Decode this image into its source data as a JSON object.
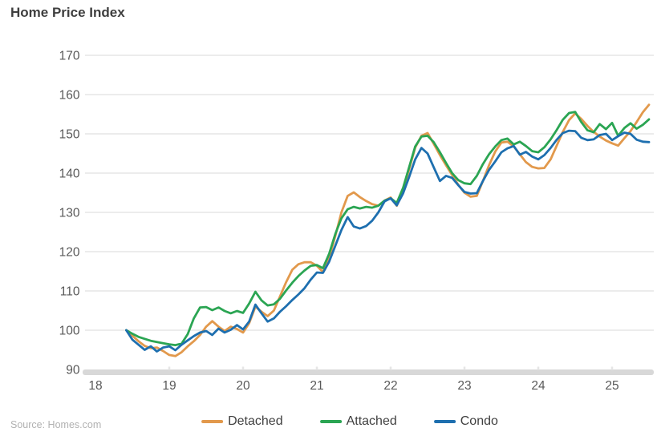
{
  "title": "Home Price Index",
  "source_note": "Source: Homes.com",
  "colors": {
    "detached": "#e2994c",
    "attached": "#2ba553",
    "condo": "#1e6faf",
    "gridline": "#dadada",
    "axis_band": "#d8d8d8",
    "axis_tick": "#e6e6e6",
    "tick_label": "#595959",
    "title_text": "#3e3e3e",
    "legend_text": "#404040",
    "source_text": "#b1b1b1"
  },
  "legend": {
    "items": [
      {
        "label": "Detached",
        "color": "#e2994c"
      },
      {
        "label": "Attached",
        "color": "#2ba553"
      },
      {
        "label": "Condo",
        "color": "#1e6faf"
      }
    ]
  },
  "chart_data": {
    "type": "line",
    "title": "Home Price Index",
    "xlabel": "",
    "ylabel": "",
    "grid": true,
    "legend_position": "bottom",
    "ylim": [
      90,
      170
    ],
    "xlim": [
      18,
      25.6
    ],
    "yticks": [
      90,
      100,
      110,
      120,
      130,
      140,
      150,
      160,
      170
    ],
    "xticks": [
      18,
      19,
      20,
      21,
      22,
      23,
      24,
      25
    ],
    "x_note": "monthly points, Jun 2018 - Jul 2025, x in decimal years (18 = 2018)",
    "x": [
      18.417,
      18.5,
      18.583,
      18.667,
      18.75,
      18.833,
      18.917,
      19.0,
      19.083,
      19.167,
      19.25,
      19.333,
      19.417,
      19.5,
      19.583,
      19.667,
      19.75,
      19.833,
      19.917,
      20.0,
      20.083,
      20.167,
      20.25,
      20.333,
      20.417,
      20.5,
      20.583,
      20.667,
      20.75,
      20.833,
      20.917,
      21.0,
      21.083,
      21.167,
      21.25,
      21.333,
      21.417,
      21.5,
      21.583,
      21.667,
      21.75,
      21.833,
      21.917,
      22.0,
      22.083,
      22.167,
      22.25,
      22.333,
      22.417,
      22.5,
      22.583,
      22.667,
      22.75,
      22.833,
      22.917,
      23.0,
      23.083,
      23.167,
      23.25,
      23.333,
      23.417,
      23.5,
      23.583,
      23.667,
      23.75,
      23.833,
      23.917,
      24.0,
      24.083,
      24.167,
      24.25,
      24.333,
      24.417,
      24.5,
      24.583,
      24.667,
      24.75,
      24.833,
      24.917,
      25.0,
      25.083,
      25.167,
      25.25,
      25.333,
      25.417,
      25.5
    ],
    "series": [
      {
        "name": "Detached",
        "color": "#e2994c",
        "values": [
          100,
          98.6,
          97.2,
          96,
          95.4,
          95.6,
          94.7,
          93.7,
          93.4,
          94.4,
          95.9,
          97.2,
          98.8,
          100.9,
          102.3,
          100.9,
          99.8,
          100.9,
          100.3,
          99.4,
          101.8,
          106,
          104.7,
          103.6,
          105,
          108.6,
          112.2,
          115.4,
          116.8,
          117.3,
          117.3,
          116.4,
          114.8,
          118.5,
          124,
          130,
          134.2,
          135.1,
          133.9,
          132.9,
          132.1,
          131.7,
          133,
          133.8,
          131.7,
          135.5,
          141,
          146.5,
          149.5,
          150.2,
          147.5,
          144.6,
          142,
          139.5,
          137,
          135,
          134,
          134.2,
          138,
          142,
          145.5,
          147.8,
          148,
          146.8,
          144.8,
          142.8,
          141.6,
          141.2,
          141.3,
          143.5,
          147,
          150.5,
          153.5,
          155.2,
          153.8,
          152,
          150.5,
          149.3,
          148.3,
          147.6,
          147,
          148.9,
          150.7,
          153,
          155.5,
          157.4
        ]
      },
      {
        "name": "Attached",
        "color": "#2ba553",
        "values": [
          100,
          99.1,
          98.3,
          97.8,
          97.3,
          97,
          96.7,
          96.4,
          96.2,
          96.6,
          99,
          103,
          105.8,
          105.9,
          105.1,
          105.8,
          104.9,
          104.3,
          104.9,
          104.4,
          106.8,
          109.8,
          107.6,
          106.3,
          106.6,
          108,
          110.1,
          112.1,
          113.8,
          115.2,
          116.4,
          116.6,
          115.8,
          119.5,
          124.5,
          128.5,
          130.8,
          131.4,
          131,
          131.4,
          131.2,
          131.7,
          133,
          133.6,
          132.4,
          136.2,
          141.5,
          146.8,
          149.3,
          149.5,
          147.9,
          145.3,
          142.6,
          140,
          138.2,
          137.4,
          137.2,
          139.3,
          142.3,
          144.8,
          146.8,
          148.4,
          148.8,
          147.3,
          148,
          146.9,
          145.6,
          145.3,
          146.6,
          148.6,
          151,
          153.6,
          155.3,
          155.6,
          153,
          150.9,
          150.4,
          152.5,
          151.2,
          152.8,
          149.5,
          151.5,
          152.7,
          151.3,
          152.3,
          153.7
        ]
      },
      {
        "name": "Condo",
        "color": "#1e6faf",
        "values": [
          100,
          97.6,
          96.3,
          95,
          95.9,
          94.6,
          95.6,
          95.9,
          94.9,
          96.3,
          97.4,
          98.5,
          99.4,
          99.8,
          98.8,
          100.4,
          99.4,
          100.1,
          101.3,
          100.2,
          102.2,
          106.5,
          104.3,
          102.2,
          103,
          104.7,
          106.1,
          107.7,
          109.1,
          110.7,
          112.9,
          114.7,
          114.6,
          117.5,
          121.5,
          125.5,
          128.8,
          126.4,
          125.9,
          126.5,
          127.9,
          130,
          132.8,
          133.6,
          131.8,
          134.8,
          139,
          143.5,
          146.4,
          145,
          141.5,
          138,
          139.3,
          138.8,
          136.9,
          135.2,
          134.8,
          134.9,
          138,
          140.8,
          143,
          145.3,
          146.3,
          146.9,
          144.7,
          145.4,
          144.2,
          143.5,
          144.6,
          146.4,
          148.5,
          150.2,
          150.8,
          150.7,
          149,
          148.4,
          148.6,
          149.7,
          150,
          148.4,
          149.4,
          150.3,
          150,
          148.5,
          148,
          147.9
        ]
      }
    ]
  }
}
